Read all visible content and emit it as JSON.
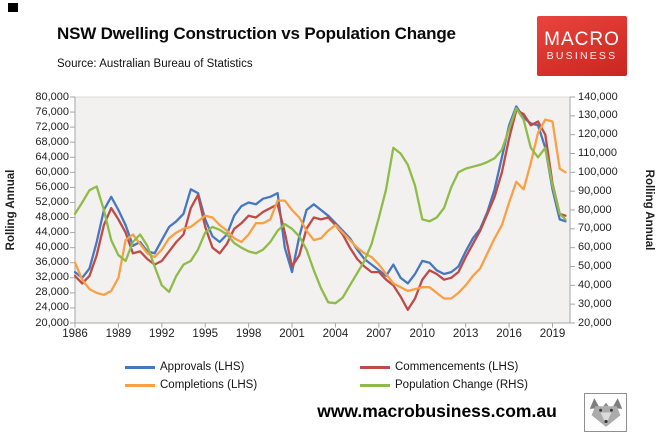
{
  "branding": {
    "logo_line1": "MACRO",
    "logo_line2": "BUSINESS",
    "logo_color": "#d93129",
    "website": "www.macrobusiness.com.au"
  },
  "chart_data": {
    "type": "line",
    "title": "NSW Dwelling Construction vs Population Change",
    "source": "Source: Australian Bureau of Statistics",
    "grid": false,
    "legend_position": "bottom",
    "plot_background": "#f2f1ef",
    "left_axis": {
      "label": "Rolling Annual",
      "min": 20000,
      "max": 80000,
      "step": 4000
    },
    "right_axis": {
      "label": "Rolling Annual",
      "min": 20000,
      "max": 140000,
      "step": 10000
    },
    "x_ticks": [
      1986,
      1989,
      1992,
      1995,
      1998,
      2001,
      2004,
      2007,
      2010,
      2013,
      2016,
      2019
    ],
    "x": [
      1986,
      1986.5,
      1987,
      1987.5,
      1988,
      1988.5,
      1989,
      1989.5,
      1990,
      1990.5,
      1991,
      1991.5,
      1992,
      1992.5,
      1993,
      1993.5,
      1994,
      1994.5,
      1995,
      1995.5,
      1996,
      1996.5,
      1997,
      1997.5,
      1998,
      1998.5,
      1999,
      1999.5,
      2000,
      2000.5,
      2001,
      2001.5,
      2002,
      2002.5,
      2003,
      2003.5,
      2004,
      2004.5,
      2005,
      2005.5,
      2006,
      2006.5,
      2007,
      2007.5,
      2008,
      2008.5,
      2009,
      2009.5,
      2010,
      2010.5,
      2011,
      2011.5,
      2012,
      2012.5,
      2013,
      2013.5,
      2014,
      2014.5,
      2015,
      2015.5,
      2016,
      2016.5,
      2017,
      2017.5,
      2018,
      2018.5,
      2019,
      2019.5,
      2019.9
    ],
    "series": [
      {
        "name": "Approvals (LHS)",
        "key": "approvals",
        "axis": "left",
        "color": "#4777c0",
        "values": [
          33500,
          32000,
          34500,
          41500,
          50000,
          53500,
          50000,
          46000,
          40500,
          41500,
          39000,
          38500,
          42000,
          45500,
          47000,
          49000,
          55500,
          54500,
          47500,
          43000,
          41500,
          43500,
          48500,
          51000,
          52000,
          51500,
          53000,
          53500,
          54500,
          40000,
          33500,
          43000,
          50000,
          51500,
          50000,
          48500,
          46500,
          44500,
          42500,
          39500,
          37000,
          35500,
          34000,
          32500,
          35500,
          32000,
          30500,
          33000,
          36500,
          36000,
          34000,
          33000,
          33500,
          35000,
          39000,
          42500,
          45000,
          49500,
          55500,
          64000,
          72500,
          77500,
          74500,
          73000,
          72500,
          66500,
          55500,
          47500,
          47000
        ]
      },
      {
        "name": "Commencements (LHS)",
        "key": "commencements",
        "axis": "left",
        "color": "#be4b48",
        "values": [
          32500,
          30500,
          32500,
          38000,
          46000,
          50500,
          47500,
          44000,
          38500,
          39000,
          37000,
          35500,
          36500,
          39000,
          41500,
          43500,
          50500,
          54000,
          45500,
          40000,
          38500,
          41000,
          45000,
          46500,
          48500,
          48000,
          49500,
          50500,
          51500,
          44000,
          35000,
          38000,
          45000,
          48000,
          47500,
          48000,
          46000,
          43500,
          40000,
          37000,
          35000,
          33500,
          33500,
          31500,
          30000,
          27000,
          23500,
          26500,
          31500,
          34000,
          33000,
          31500,
          32000,
          33500,
          37500,
          41000,
          44500,
          49000,
          53500,
          60000,
          69000,
          76500,
          75500,
          72500,
          73500,
          70000,
          57000,
          49000,
          48500
        ]
      },
      {
        "name": "Completions (LHS)",
        "key": "completions",
        "axis": "left",
        "color": "#f9a045",
        "values": [
          36000,
          31500,
          29000,
          28000,
          27500,
          28500,
          32000,
          42000,
          43500,
          41000,
          38500,
          37500,
          39500,
          42500,
          44000,
          45000,
          45500,
          47000,
          48500,
          48000,
          46000,
          44500,
          42500,
          41500,
          43500,
          46500,
          46500,
          47500,
          52500,
          52500,
          50000,
          48000,
          44500,
          42000,
          42500,
          44500,
          46000,
          44000,
          42000,
          40000,
          38500,
          37500,
          35500,
          33000,
          30500,
          29500,
          28500,
          29000,
          29500,
          29500,
          28000,
          26500,
          26500,
          28000,
          30000,
          32500,
          34500,
          38500,
          42500,
          46000,
          52000,
          57500,
          55500,
          62500,
          70500,
          74000,
          73500,
          61000,
          60000
        ]
      },
      {
        "name": "Population Change (RHS)",
        "key": "population-change",
        "axis": "right",
        "color": "#8fbb48",
        "values": [
          78000,
          84000,
          90500,
          92500,
          80000,
          64000,
          56000,
          53000,
          63000,
          67000,
          61000,
          50000,
          40000,
          36500,
          45000,
          51000,
          53000,
          59000,
          68000,
          71000,
          69500,
          67000,
          62500,
          60000,
          58000,
          57000,
          59000,
          63000,
          69000,
          72500,
          70000,
          66000,
          59000,
          48000,
          38500,
          31000,
          30500,
          33500,
          40000,
          46500,
          53000,
          62000,
          76000,
          91000,
          113000,
          110000,
          104000,
          93000,
          75000,
          74000,
          76000,
          81000,
          92000,
          100000,
          102000,
          103000,
          104000,
          105500,
          107500,
          112000,
          123000,
          134000,
          128000,
          113000,
          108000,
          113000,
          93000,
          78000,
          75000
        ]
      }
    ]
  }
}
